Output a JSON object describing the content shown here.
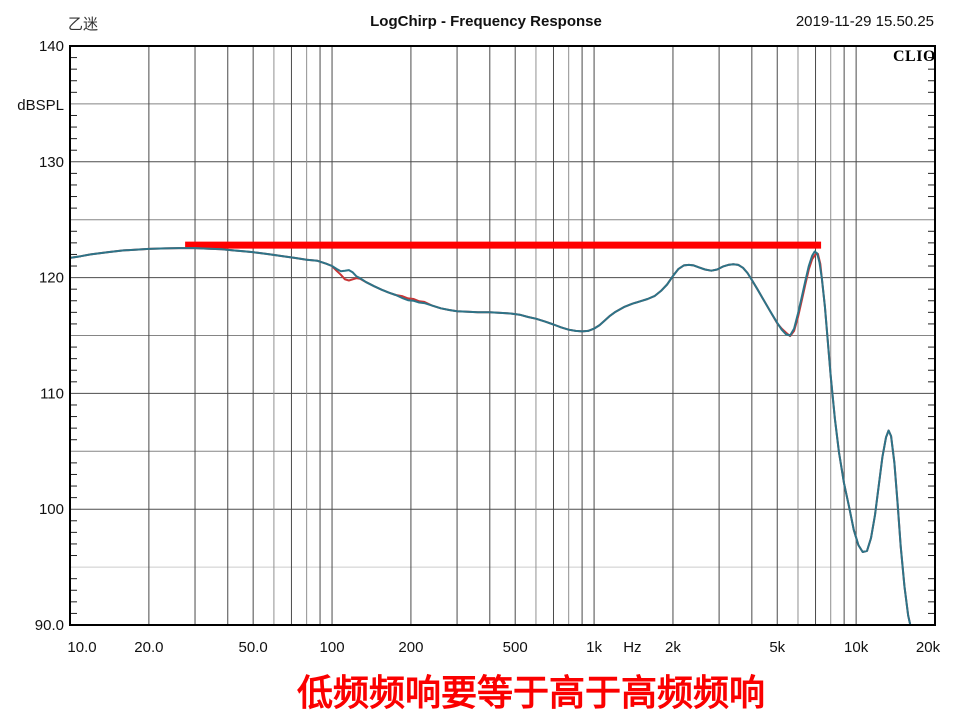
{
  "header": {
    "author": "乙迷",
    "title": "LogChirp - Frequency Response",
    "datetime": "2019-11-29 15.50.25"
  },
  "watermark": "CLIO",
  "annotation": {
    "text": "低频频响要等于高于高频频响",
    "color": "#fb0000"
  },
  "chart_data": {
    "type": "line",
    "title": "LogChirp - Frequency Response",
    "xlabel": "Hz",
    "ylabel": "dBSPL",
    "x_scale": "log",
    "xlim": [
      10,
      20000
    ],
    "ylim": [
      90,
      140
    ],
    "grid": true,
    "x_ticks": [
      {
        "f": 10,
        "label": "10.0",
        "dx": 12
      },
      {
        "f": 20,
        "label": "20.0",
        "dx": 0
      },
      {
        "f": 50,
        "label": "50.0",
        "dx": 0
      },
      {
        "f": 100,
        "label": "100",
        "dx": 0
      },
      {
        "f": 200,
        "label": "200",
        "dx": 0
      },
      {
        "f": 500,
        "label": "500",
        "dx": 0
      },
      {
        "f": 1000,
        "label": "1k",
        "dx": 0
      },
      {
        "f": 2000,
        "label": "2k",
        "dx": 0
      },
      {
        "f": 5000,
        "label": "5k",
        "dx": 0
      },
      {
        "f": 10000,
        "label": "10k",
        "dx": 0
      },
      {
        "f": 20000,
        "label": "20k",
        "dx": -7
      }
    ],
    "x_unit": {
      "label": "Hz",
      "f": 1400
    },
    "y_ticks": [
      {
        "v": 140,
        "label": "140"
      },
      {
        "v": 130,
        "label": "130"
      },
      {
        "v": 120,
        "label": "120"
      },
      {
        "v": 110,
        "label": "110"
      },
      {
        "v": 100,
        "label": "100"
      },
      {
        "v": 90,
        "label": "90.0"
      }
    ],
    "grid_levels_major": [
      100,
      110,
      120,
      130
    ],
    "grid_levels_minor": [
      105,
      115,
      125,
      135
    ],
    "grid_levels_faint": [
      95
    ],
    "reference_line": {
      "name": "target-level",
      "color": "#ff0000",
      "level_db": 122.8,
      "freq_start": 27.5,
      "freq_end": 7350,
      "thickness_px": 7
    },
    "series": [
      {
        "name": "red-trace",
        "color": "#c93636",
        "points": [
          [
            10,
            121.7
          ],
          [
            11,
            121.85
          ],
          [
            12,
            122.0
          ],
          [
            14,
            122.2
          ],
          [
            16,
            122.35
          ],
          [
            18,
            122.42
          ],
          [
            20,
            122.48
          ],
          [
            23,
            122.52
          ],
          [
            26,
            122.55
          ],
          [
            30,
            122.55
          ],
          [
            34,
            122.5
          ],
          [
            38,
            122.45
          ],
          [
            42,
            122.35
          ],
          [
            47,
            122.25
          ],
          [
            52,
            122.15
          ],
          [
            58,
            122.0
          ],
          [
            65,
            121.85
          ],
          [
            72,
            121.7
          ],
          [
            80,
            121.55
          ],
          [
            88,
            121.45
          ],
          [
            95,
            121.2
          ],
          [
            100,
            121.0
          ],
          [
            104,
            120.6
          ],
          [
            108,
            120.25
          ],
          [
            112,
            119.85
          ],
          [
            116,
            119.75
          ],
          [
            120,
            119.85
          ],
          [
            124,
            119.95
          ],
          [
            128,
            119.9
          ],
          [
            135,
            119.6
          ],
          [
            145,
            119.25
          ],
          [
            155,
            118.95
          ],
          [
            165,
            118.7
          ],
          [
            175,
            118.5
          ],
          [
            185,
            118.4
          ],
          [
            195,
            118.2
          ],
          [
            205,
            118.15
          ],
          [
            215,
            117.95
          ],
          [
            225,
            117.9
          ],
          [
            240,
            117.6
          ],
          [
            260,
            117.35
          ],
          [
            280,
            117.2
          ],
          [
            300,
            117.1
          ],
          [
            330,
            117.05
          ],
          [
            360,
            117.0
          ],
          [
            400,
            117.0
          ],
          [
            440,
            116.95
          ],
          [
            480,
            116.9
          ],
          [
            520,
            116.8
          ],
          [
            560,
            116.6
          ],
          [
            600,
            116.45
          ],
          [
            650,
            116.2
          ],
          [
            700,
            115.95
          ],
          [
            750,
            115.7
          ],
          [
            800,
            115.5
          ],
          [
            850,
            115.4
          ],
          [
            900,
            115.35
          ],
          [
            950,
            115.4
          ],
          [
            1000,
            115.6
          ],
          [
            1050,
            115.9
          ],
          [
            1100,
            116.3
          ],
          [
            1150,
            116.7
          ],
          [
            1200,
            117.0
          ],
          [
            1300,
            117.45
          ],
          [
            1400,
            117.75
          ],
          [
            1500,
            117.95
          ],
          [
            1600,
            118.15
          ],
          [
            1700,
            118.4
          ],
          [
            1800,
            118.85
          ],
          [
            1900,
            119.4
          ],
          [
            2000,
            120.15
          ],
          [
            2100,
            120.75
          ],
          [
            2200,
            121.05
          ],
          [
            2300,
            121.1
          ],
          [
            2400,
            121.05
          ],
          [
            2500,
            120.9
          ],
          [
            2650,
            120.7
          ],
          [
            2800,
            120.6
          ],
          [
            2950,
            120.7
          ],
          [
            3100,
            120.95
          ],
          [
            3250,
            121.1
          ],
          [
            3400,
            121.15
          ],
          [
            3550,
            121.1
          ],
          [
            3700,
            120.85
          ],
          [
            3850,
            120.4
          ],
          [
            4000,
            119.8
          ],
          [
            4200,
            119.0
          ],
          [
            4400,
            118.2
          ],
          [
            4700,
            117.1
          ],
          [
            5000,
            116.05
          ],
          [
            5200,
            115.6
          ],
          [
            5400,
            115.25
          ],
          [
            5600,
            114.95
          ],
          [
            5800,
            115.4
          ],
          [
            6000,
            116.6
          ],
          [
            6200,
            118.0
          ],
          [
            6400,
            119.4
          ],
          [
            6600,
            120.7
          ],
          [
            6800,
            121.6
          ],
          [
            7000,
            122.0
          ],
          [
            7150,
            122.05
          ],
          [
            7300,
            121.2
          ],
          [
            7400,
            119.9
          ],
          [
            7600,
            117.5
          ],
          [
            7800,
            114.5
          ],
          [
            8000,
            111.5
          ],
          [
            8300,
            107.8
          ],
          [
            8600,
            104.9
          ],
          [
            9000,
            102.2
          ],
          [
            9400,
            100.2
          ],
          [
            9800,
            98.2
          ],
          [
            10200,
            96.9
          ],
          [
            10600,
            96.3
          ],
          [
            11000,
            96.4
          ],
          [
            11400,
            97.5
          ],
          [
            11800,
            99.5
          ],
          [
            12200,
            102.0
          ],
          [
            12600,
            104.5
          ],
          [
            13000,
            106.2
          ],
          [
            13300,
            106.8
          ],
          [
            13600,
            106.3
          ],
          [
            14000,
            104.0
          ],
          [
            14400,
            100.5
          ],
          [
            14800,
            96.8
          ],
          [
            15300,
            93.3
          ],
          [
            15800,
            90.8
          ],
          [
            16100,
            90.0
          ]
        ]
      },
      {
        "name": "teal-trace",
        "color": "#2c7488",
        "points": [
          [
            10,
            121.7
          ],
          [
            11,
            121.85
          ],
          [
            12,
            122.0
          ],
          [
            14,
            122.2
          ],
          [
            16,
            122.35
          ],
          [
            18,
            122.42
          ],
          [
            20,
            122.48
          ],
          [
            23,
            122.52
          ],
          [
            26,
            122.55
          ],
          [
            30,
            122.55
          ],
          [
            34,
            122.5
          ],
          [
            38,
            122.45
          ],
          [
            42,
            122.35
          ],
          [
            47,
            122.25
          ],
          [
            52,
            122.15
          ],
          [
            58,
            122.0
          ],
          [
            65,
            121.85
          ],
          [
            72,
            121.7
          ],
          [
            80,
            121.55
          ],
          [
            88,
            121.45
          ],
          [
            95,
            121.2
          ],
          [
            100,
            121.0
          ],
          [
            104,
            120.75
          ],
          [
            108,
            120.55
          ],
          [
            112,
            120.6
          ],
          [
            116,
            120.65
          ],
          [
            120,
            120.45
          ],
          [
            124,
            120.1
          ],
          [
            128,
            119.95
          ],
          [
            135,
            119.6
          ],
          [
            145,
            119.25
          ],
          [
            155,
            118.95
          ],
          [
            165,
            118.7
          ],
          [
            175,
            118.5
          ],
          [
            185,
            118.25
          ],
          [
            195,
            118.05
          ],
          [
            205,
            118.0
          ],
          [
            215,
            117.85
          ],
          [
            225,
            117.8
          ],
          [
            240,
            117.6
          ],
          [
            260,
            117.35
          ],
          [
            280,
            117.2
          ],
          [
            300,
            117.1
          ],
          [
            330,
            117.05
          ],
          [
            360,
            117.0
          ],
          [
            400,
            117.0
          ],
          [
            440,
            116.95
          ],
          [
            480,
            116.9
          ],
          [
            520,
            116.8
          ],
          [
            560,
            116.6
          ],
          [
            600,
            116.45
          ],
          [
            650,
            116.2
          ],
          [
            700,
            115.95
          ],
          [
            750,
            115.7
          ],
          [
            800,
            115.5
          ],
          [
            850,
            115.4
          ],
          [
            900,
            115.35
          ],
          [
            950,
            115.4
          ],
          [
            1000,
            115.6
          ],
          [
            1050,
            115.9
          ],
          [
            1100,
            116.3
          ],
          [
            1150,
            116.7
          ],
          [
            1200,
            117.0
          ],
          [
            1300,
            117.45
          ],
          [
            1400,
            117.75
          ],
          [
            1500,
            117.95
          ],
          [
            1600,
            118.15
          ],
          [
            1700,
            118.4
          ],
          [
            1800,
            118.85
          ],
          [
            1900,
            119.4
          ],
          [
            2000,
            120.15
          ],
          [
            2100,
            120.75
          ],
          [
            2200,
            121.05
          ],
          [
            2300,
            121.1
          ],
          [
            2400,
            121.05
          ],
          [
            2500,
            120.9
          ],
          [
            2650,
            120.7
          ],
          [
            2800,
            120.6
          ],
          [
            2950,
            120.7
          ],
          [
            3100,
            120.95
          ],
          [
            3250,
            121.1
          ],
          [
            3400,
            121.15
          ],
          [
            3550,
            121.1
          ],
          [
            3700,
            120.85
          ],
          [
            3850,
            120.4
          ],
          [
            4000,
            119.8
          ],
          [
            4200,
            119.0
          ],
          [
            4400,
            118.2
          ],
          [
            4700,
            117.1
          ],
          [
            5000,
            116.1
          ],
          [
            5200,
            115.5
          ],
          [
            5400,
            115.1
          ],
          [
            5600,
            115.0
          ],
          [
            5800,
            115.6
          ],
          [
            6000,
            116.9
          ],
          [
            6200,
            118.3
          ],
          [
            6400,
            119.7
          ],
          [
            6600,
            121.0
          ],
          [
            6800,
            121.9
          ],
          [
            6950,
            122.25
          ],
          [
            7100,
            122.1
          ],
          [
            7250,
            121.3
          ],
          [
            7400,
            119.9
          ],
          [
            7600,
            117.5
          ],
          [
            7800,
            114.5
          ],
          [
            8000,
            111.5
          ],
          [
            8300,
            107.8
          ],
          [
            8600,
            104.9
          ],
          [
            9000,
            102.2
          ],
          [
            9400,
            100.2
          ],
          [
            9800,
            98.2
          ],
          [
            10200,
            96.9
          ],
          [
            10600,
            96.3
          ],
          [
            11000,
            96.4
          ],
          [
            11400,
            97.5
          ],
          [
            11800,
            99.5
          ],
          [
            12200,
            102.0
          ],
          [
            12600,
            104.5
          ],
          [
            13000,
            106.2
          ],
          [
            13300,
            106.8
          ],
          [
            13600,
            106.3
          ],
          [
            14000,
            104.0
          ],
          [
            14400,
            100.5
          ],
          [
            14800,
            96.8
          ],
          [
            15300,
            93.3
          ],
          [
            15800,
            90.8
          ],
          [
            16100,
            90.0
          ]
        ]
      }
    ]
  }
}
